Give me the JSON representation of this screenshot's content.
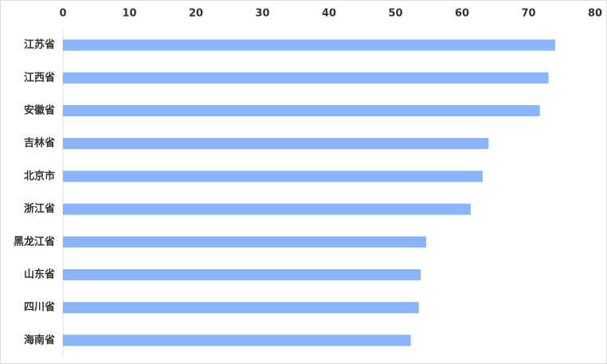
{
  "chart_data": {
    "type": "bar",
    "orientation": "horizontal",
    "categories": [
      "江苏省",
      "江西省",
      "安徽省",
      "吉林省",
      "北京市",
      "浙江省",
      "黑龙江省",
      "山东省",
      "四川省",
      "海南省"
    ],
    "values": [
      74,
      73,
      71.7,
      64,
      63.1,
      61.3,
      54.6,
      53.8,
      53.5,
      52.3
    ],
    "color": "#8ab4f8",
    "xlim": [
      0,
      80
    ],
    "xticks": [
      0,
      10,
      20,
      30,
      40,
      50,
      60,
      70,
      80
    ],
    "grid": false
  }
}
